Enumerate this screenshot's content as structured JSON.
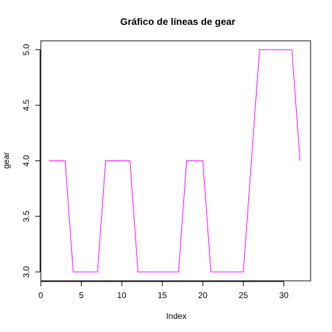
{
  "chart_data": {
    "type": "line",
    "title": "Gráfico de líneas de  gear",
    "xlabel": "Index",
    "ylabel": "gear",
    "xlim": [
      0,
      33.3
    ],
    "ylim": [
      2.92,
      5.08
    ],
    "x_ticks": [
      0,
      5,
      10,
      15,
      20,
      25,
      30
    ],
    "y_ticks": [
      3.0,
      3.5,
      4.0,
      4.5,
      5.0
    ],
    "y_tick_labels": [
      "3.0",
      "3.5",
      "4.0",
      "4.5",
      "5.0"
    ],
    "grid": false,
    "series": [
      {
        "color": "#ff00ff",
        "x": [
          1,
          2,
          3,
          4,
          5,
          6,
          7,
          8,
          9,
          10,
          11,
          12,
          13,
          14,
          15,
          16,
          17,
          18,
          19,
          20,
          21,
          22,
          23,
          24,
          25,
          26,
          27,
          28,
          29,
          30,
          31,
          32
        ],
        "values": [
          4,
          4,
          4,
          3,
          3,
          3,
          3,
          4,
          4,
          4,
          4,
          3,
          3,
          3,
          3,
          3,
          3,
          4,
          4,
          4,
          3,
          3,
          3,
          3,
          3,
          4,
          5,
          5,
          5,
          5,
          5,
          4
        ]
      }
    ]
  }
}
